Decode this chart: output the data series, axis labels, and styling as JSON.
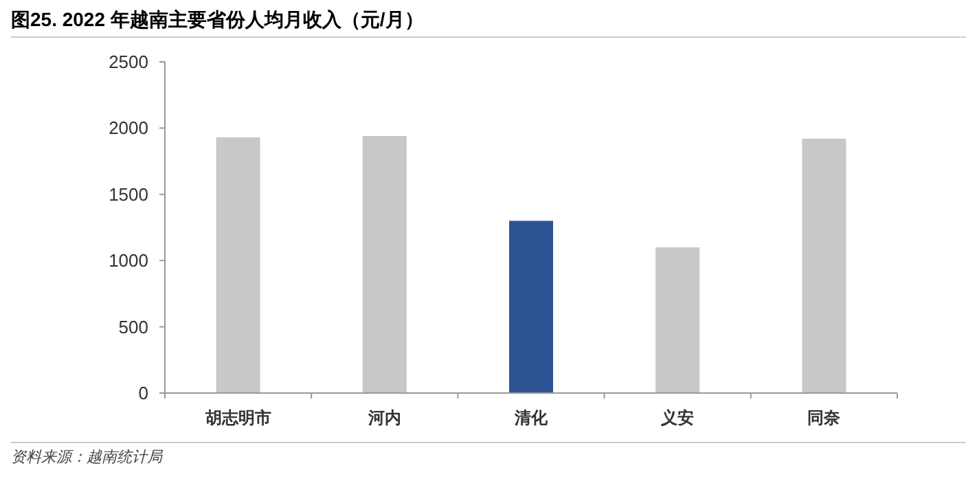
{
  "chart_data": {
    "type": "bar",
    "title": "图25. 2022 年越南主要省份人均月收入（元/月）",
    "categories": [
      "胡志明市",
      "河内",
      "清化",
      "义安",
      "同奈"
    ],
    "values": [
      1930,
      1940,
      1300,
      1100,
      1920
    ],
    "colors": [
      "#c8c8c8",
      "#c8c8c8",
      "#2e5395",
      "#c8c8c8",
      "#c8c8c8"
    ],
    "ylim": [
      0,
      2500
    ],
    "yticks": [
      0,
      500,
      1000,
      1500,
      2000,
      2500
    ],
    "grid": false,
    "annotations": [
      "资料来源：越南统计局"
    ]
  }
}
